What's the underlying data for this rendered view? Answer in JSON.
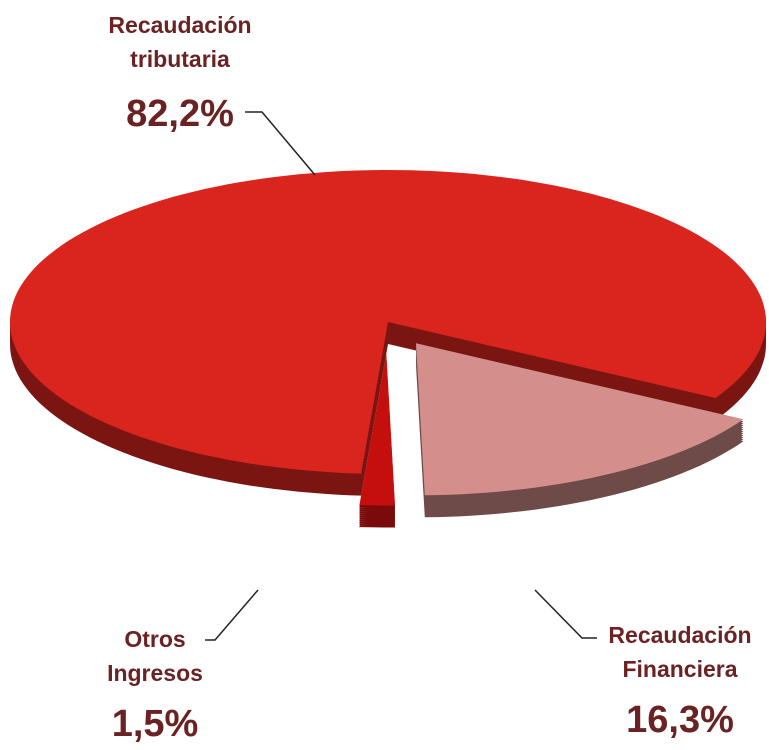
{
  "chart_data": {
    "type": "pie",
    "categories": [
      "Recaudación tributaria",
      "Recaudación Financiera",
      "Otros Ingresos"
    ],
    "values": [
      82.2,
      16.3,
      1.5
    ],
    "value_labels": [
      "82,2%",
      "16,3%",
      "1,5%"
    ],
    "colors": [
      "#d9251d",
      "#d48f8c",
      "#c40f0d"
    ],
    "side_colors": [
      "#7a1512",
      "#6e4a48",
      "#7a0b0a"
    ]
  }
}
